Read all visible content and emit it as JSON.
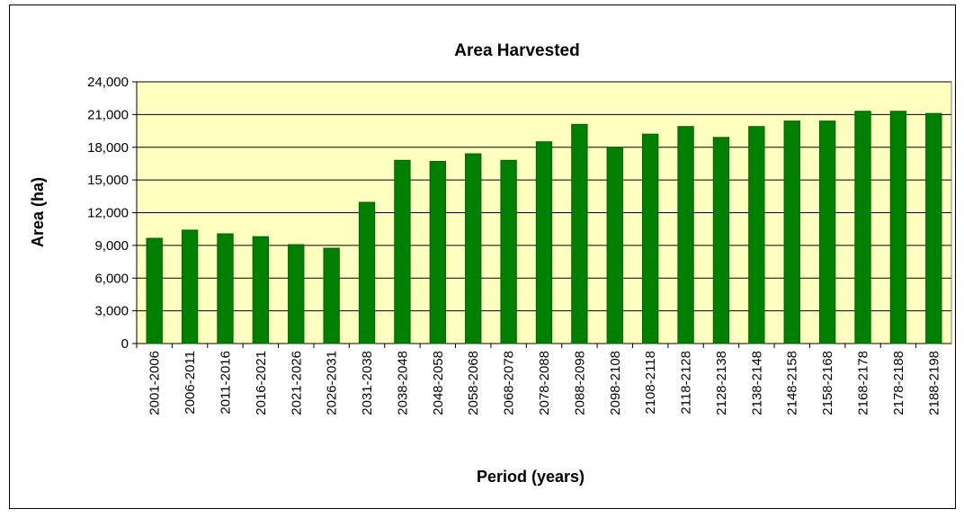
{
  "chart_data": {
    "type": "bar",
    "title": "Area Harvested",
    "x_label": "Period (years)",
    "y_label": "Area (ha)",
    "categories": [
      "2001-2006",
      "2006-2011",
      "2011-2016",
      "2016-2021",
      "2021-2026",
      "2026-2031",
      "2031-2038",
      "2038-2048",
      "2048-2058",
      "2058-2068",
      "2068-2078",
      "2078-2088",
      "2088-2098",
      "2098-2108",
      "2108-2118",
      "2118-2128",
      "2128-2138",
      "2138-2148",
      "2148-2158",
      "2158-2168",
      "2168-2178",
      "2178-2188",
      "2188-2198"
    ],
    "values": [
      9650,
      10400,
      10060,
      9800,
      9070,
      8740,
      12950,
      16800,
      16700,
      17400,
      16800,
      18500,
      20100,
      18000,
      19200,
      19900,
      18900,
      19900,
      20400,
      20400,
      21300,
      21300,
      21100
    ],
    "color": "#008000",
    "ylim": [
      0,
      24000
    ],
    "yticks": [
      0,
      {
        "value": 3000,
        "label": "3,000"
      },
      {
        "value": 6000,
        "label": "6,000"
      },
      {
        "value": 9000,
        "label": "9,000"
      },
      {
        "value": 12000,
        "label": "12,000"
      },
      {
        "value": 15000,
        "label": "15,000"
      },
      {
        "value": 18000,
        "label": "18,000"
      },
      {
        "value": 21000,
        "label": "21,000"
      },
      {
        "value": 24000,
        "label": "24,000"
      }
    ],
    "grid": true
  }
}
